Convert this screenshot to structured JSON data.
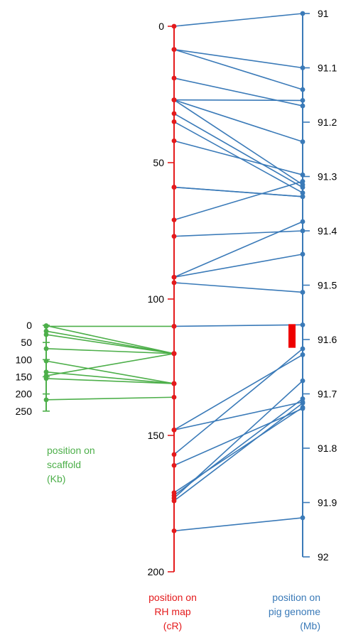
{
  "colors": {
    "rh": "#e41a1c",
    "genome": "#3a7ab8",
    "scaffold": "#4daf4a",
    "region": "#ee0000"
  },
  "axes": {
    "rh_ticks": [
      "0",
      "50",
      "100",
      "150",
      "200"
    ],
    "genome_ticks": [
      "91",
      "91.1",
      "91.2",
      "91.3",
      "91.4",
      "91.5",
      "91.6",
      "91.7",
      "91.8",
      "91.9",
      "92"
    ],
    "scaffold_ticks": [
      "0",
      "50",
      "100",
      "150",
      "200",
      "250"
    ]
  },
  "captions": {
    "rh": [
      "position on",
      "RH map",
      "(cR)"
    ],
    "genome": [
      "position on",
      "pig genome",
      "(Mb)"
    ],
    "scaffold": [
      "position on",
      "scaffold",
      "(Kb)"
    ]
  },
  "chart_data": {
    "type": "comparative-map",
    "axes": {
      "rh": {
        "range": [
          0,
          200
        ],
        "ticks": [
          0,
          50,
          100,
          150,
          200
        ]
      },
      "genome": {
        "range": [
          91,
          92
        ],
        "ticks": [
          91,
          91.1,
          91.2,
          91.3,
          91.4,
          91.5,
          91.6,
          91.7,
          91.8,
          91.9,
          92
        ]
      },
      "scaffold": {
        "range": [
          0,
          250
        ],
        "ticks": [
          0,
          50,
          100,
          150,
          200,
          250
        ]
      }
    },
    "rh_to_genome": [
      [
        0,
        91.0
      ],
      [
        8.5,
        91.1
      ],
      [
        8.5,
        91.14
      ],
      [
        19,
        91.17
      ],
      [
        27,
        91.236
      ],
      [
        27,
        91.16
      ],
      [
        27,
        91.315
      ],
      [
        32,
        91.32
      ],
      [
        35,
        91.33
      ],
      [
        42,
        91.297
      ],
      [
        59,
        91.337
      ],
      [
        59,
        91.337
      ],
      [
        71,
        91.309
      ],
      [
        77,
        91.4
      ],
      [
        92,
        91.383
      ],
      [
        92,
        91.443
      ],
      [
        94,
        91.513
      ],
      [
        110,
        91.573
      ],
      [
        148,
        91.628
      ],
      [
        148,
        91.715
      ],
      [
        157,
        91.617
      ],
      [
        161,
        91.727
      ],
      [
        171,
        91.725
      ],
      [
        172,
        91.709
      ],
      [
        173,
        91.676
      ],
      [
        174,
        91.717
      ],
      [
        185,
        91.928
      ]
    ],
    "scaffold_to_rh": [
      [
        1,
        120
      ],
      [
        3,
        110
      ],
      [
        17,
        120
      ],
      [
        27,
        120
      ],
      [
        68,
        120
      ],
      [
        104,
        131
      ],
      [
        136,
        131
      ],
      [
        147,
        120
      ],
      [
        155,
        131
      ],
      [
        217,
        136
      ]
    ],
    "highlight_region_mb": [
      91.573,
      91.593
    ]
  }
}
